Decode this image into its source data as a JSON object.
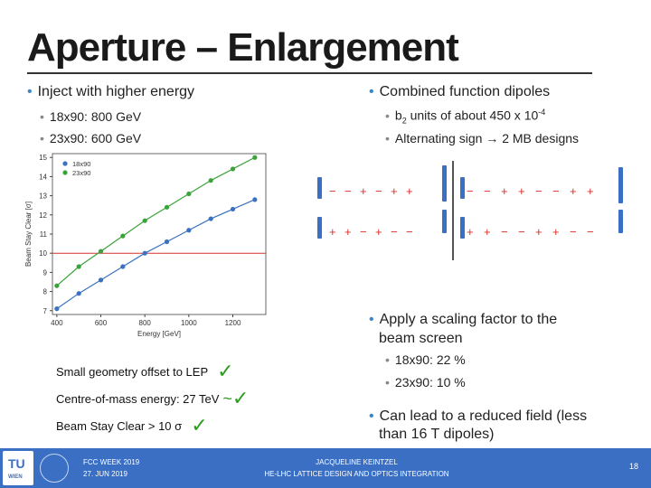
{
  "title": "Aperture – Enlargement",
  "left_bullet": "Inject with higher energy",
  "left_sub": [
    "18x90: 800 GeV",
    "23x90: 600 GeV"
  ],
  "right_bullet": "Combined function dipoles",
  "right_sub1_pre": "b",
  "right_sub1_sub": "2",
  "right_sub1_mid": " units of about 450 x 10",
  "right_sub1_sup": "-4",
  "right_sub2_pre": "Alternating sign ",
  "right_sub2_arrow": "→",
  "right_sub2_post": " 2 MB designs",
  "scaling_bullet_l1": "Apply a scaling factor to the",
  "scaling_bullet_l2": "beam screen",
  "scaling_sub": [
    "18x90: 22 %",
    "23x90: 10 %"
  ],
  "reduced_bullet_l1": "Can lead to a reduced field (less",
  "reduced_bullet_l2": "than 16 T dipoles)",
  "boxes": [
    {
      "label": "Small geometry offset to LEP",
      "mark": "✓",
      "approx": ""
    },
    {
      "label": "Centre-of-mass energy: 27 TeV",
      "mark": "✓",
      "approx": "~"
    },
    {
      "label": "Beam Stay Clear > 10 σ",
      "mark": "✓",
      "approx": ""
    }
  ],
  "dipole_rows": [
    [
      "−",
      "−",
      "+",
      "−",
      "+",
      "+"
    ],
    [
      "−",
      "−",
      "+",
      "+",
      "−",
      "−",
      "+",
      "+"
    ],
    [
      "+",
      "+",
      "−",
      "+",
      "−",
      "−"
    ],
    [
      "+",
      "+",
      "−",
      "−",
      "+",
      "+",
      "−",
      "−"
    ]
  ],
  "footer": {
    "left_l1": "FCC WEEK 2019",
    "left_l2": "27. JUN 2019",
    "mid_l1": "JACQUELINE KEINTZEL",
    "mid_l2": "HE-LHC LATTICE DESIGN AND OPTICS INTEGRATION",
    "page": "18",
    "logo": "TU",
    "logo_sub": "WIEN"
  },
  "colors": {
    "accent": "#3a6fc4",
    "green": "#3aa33a",
    "blue": "#3a72c0",
    "red": "#d9302a",
    "check": "#2a9d1a"
  },
  "chart_data": {
    "type": "line",
    "xlabel": "Energy [GeV]",
    "ylabel": "Beam Stay Clear [σ]",
    "xlim": [
      380,
      1350
    ],
    "ylim": [
      6.8,
      15.2
    ],
    "xticks": [
      400,
      600,
      800,
      1000,
      1200
    ],
    "xtick_labels": [
      "400",
      "600",
      "800",
      "1000",
      "1200"
    ],
    "yticks": [
      7,
      8,
      9,
      10,
      11,
      12,
      13,
      14,
      15
    ],
    "ytick_labels": [
      "7",
      "8",
      "9",
      "10",
      "11",
      "12",
      "13",
      "14",
      "15"
    ],
    "legend": "top-left",
    "threshold": 10,
    "series": [
      {
        "name": "18x90",
        "color": "#3a72c0",
        "x": [
          400,
          500,
          600,
          700,
          800,
          900,
          1000,
          1100,
          1200,
          1300
        ],
        "y": [
          7.1,
          7.9,
          8.6,
          9.3,
          10.0,
          10.6,
          11.2,
          11.8,
          12.3,
          12.8
        ]
      },
      {
        "name": "23x90",
        "color": "#3aa33a",
        "x": [
          400,
          500,
          600,
          700,
          800,
          900,
          1000,
          1100,
          1200,
          1300
        ],
        "y": [
          8.3,
          9.3,
          10.1,
          10.9,
          11.7,
          12.4,
          13.1,
          13.8,
          14.4,
          15.0
        ]
      }
    ]
  }
}
